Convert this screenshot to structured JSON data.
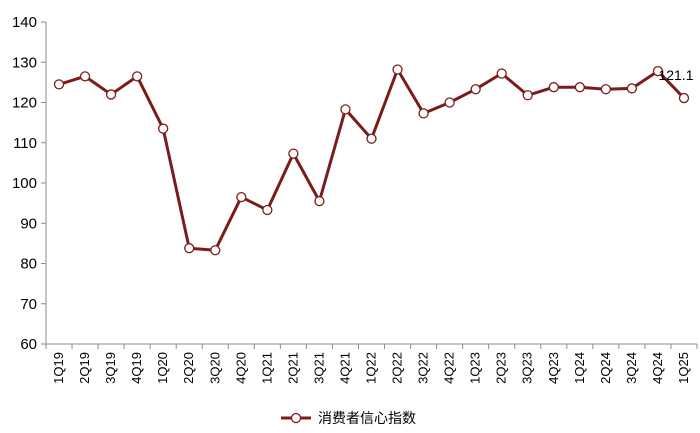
{
  "chart_data": {
    "type": "line",
    "categories": [
      "1Q19",
      "2Q19",
      "3Q19",
      "4Q19",
      "1Q20",
      "2Q20",
      "3Q20",
      "4Q20",
      "1Q21",
      "2Q21",
      "3Q21",
      "4Q21",
      "1Q22",
      "2Q22",
      "3Q22",
      "4Q22",
      "1Q23",
      "2Q23",
      "3Q23",
      "4Q23",
      "1Q24",
      "2Q24",
      "3Q24",
      "4Q24",
      "1Q25"
    ],
    "series": [
      {
        "name": "消费者信心指数",
        "values": [
          124.5,
          126.5,
          122.0,
          126.5,
          113.5,
          83.8,
          83.3,
          96.5,
          93.3,
          107.3,
          95.5,
          118.3,
          111.0,
          128.2,
          117.3,
          120.0,
          123.3,
          127.2,
          121.8,
          123.8,
          123.8,
          123.3,
          123.5,
          127.8,
          121.1
        ],
        "color": "#7b1c1c"
      }
    ],
    "yticks": [
      60,
      70,
      80,
      90,
      100,
      110,
      120,
      130,
      140
    ],
    "ylim": [
      60,
      140
    ],
    "annotations": [
      {
        "index": 24,
        "text": "121.1"
      }
    ],
    "legend_position": "bottom-center",
    "grid": false
  }
}
